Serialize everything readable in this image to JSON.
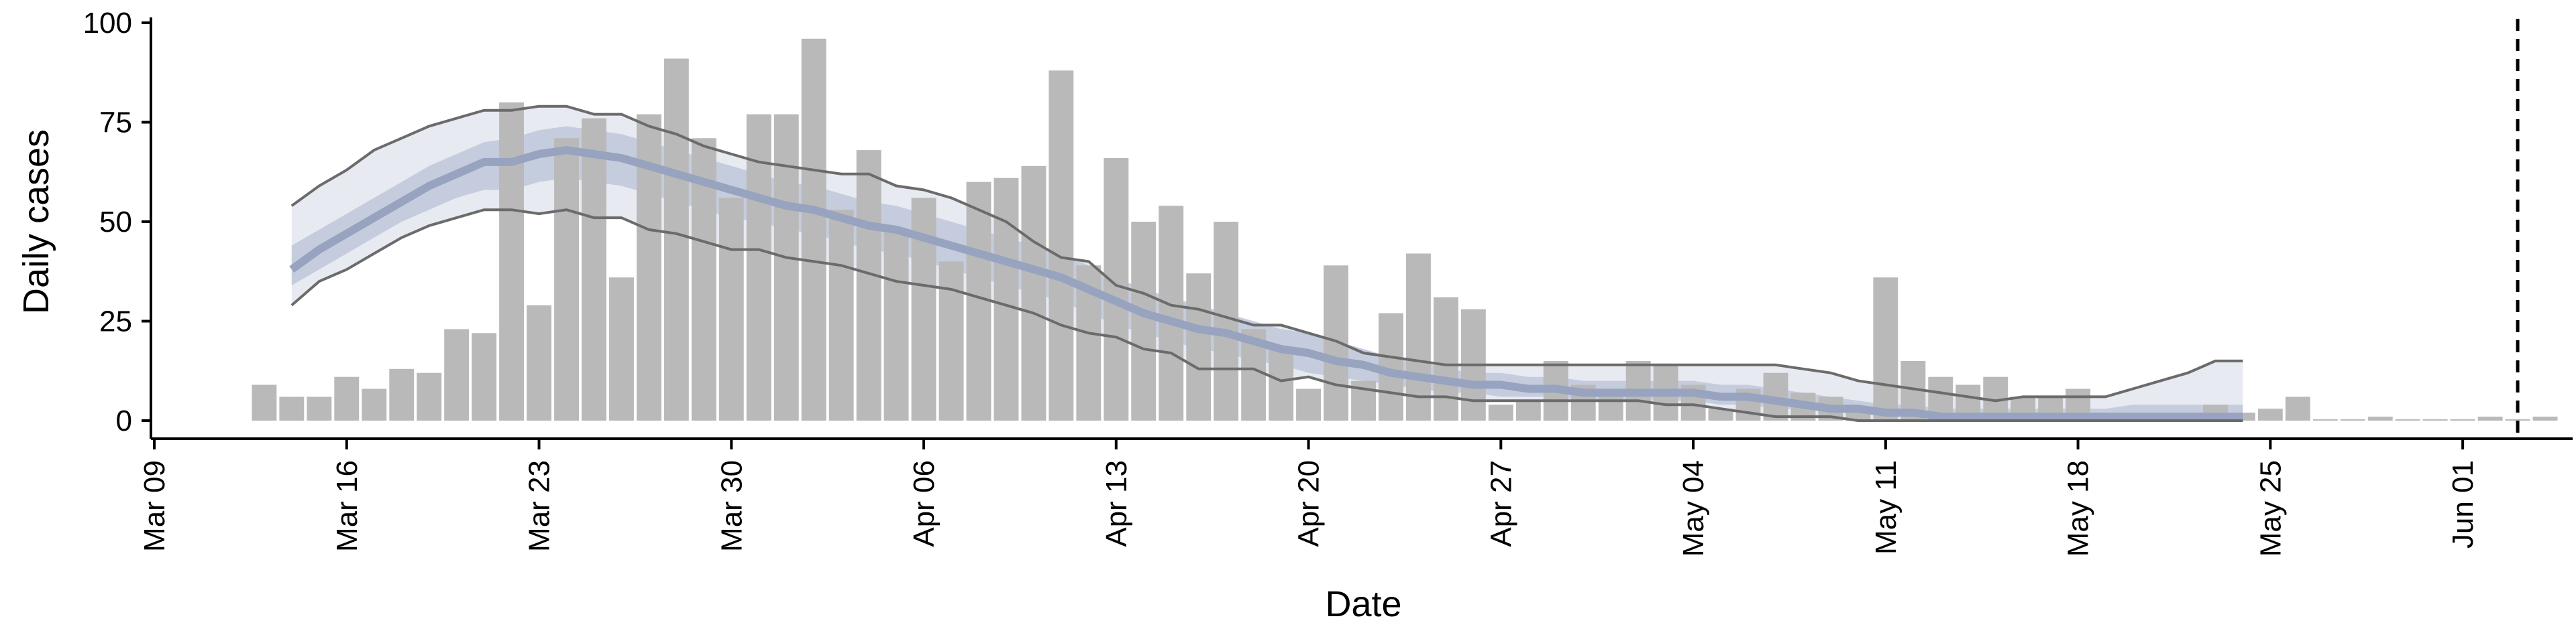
{
  "chart_data": {
    "type": "bar",
    "title": "",
    "xlabel": "Date",
    "ylabel": "Daily cases",
    "ylim": [
      0,
      100
    ],
    "yticks": [
      0,
      25,
      50,
      75,
      100
    ],
    "xlim": [
      "2020-03-09",
      "2020-06-05"
    ],
    "xticks": [
      {
        "date": "2020-03-09",
        "label": "Mar 09"
      },
      {
        "date": "2020-03-16",
        "label": "Mar 16"
      },
      {
        "date": "2020-03-23",
        "label": "Mar 23"
      },
      {
        "date": "2020-03-30",
        "label": "Mar 30"
      },
      {
        "date": "2020-04-06",
        "label": "Apr 06"
      },
      {
        "date": "2020-04-13",
        "label": "Apr 13"
      },
      {
        "date": "2020-04-20",
        "label": "Apr 20"
      },
      {
        "date": "2020-04-27",
        "label": "Apr 27"
      },
      {
        "date": "2020-05-04",
        "label": "May 04"
      },
      {
        "date": "2020-05-11",
        "label": "May 11"
      },
      {
        "date": "2020-05-18",
        "label": "May 18"
      },
      {
        "date": "2020-05-25",
        "label": "May 25"
      },
      {
        "date": "2020-06-01",
        "label": "Jun 01"
      }
    ],
    "grid": false,
    "legend": "none",
    "colors": {
      "bars": "#b9b9b9",
      "band_outer": "#e8eaf1",
      "band_inner": "#c5ccdd",
      "median": "#97a3bf",
      "ci_lines": "#6b6b6b",
      "vline": "#000000"
    },
    "vline_date": "2020-06-03",
    "observed": {
      "start": "2020-03-13",
      "values": [
        9,
        6,
        6,
        11,
        8,
        13,
        12,
        23,
        22,
        80,
        29,
        71,
        76,
        36,
        77,
        91,
        71,
        56,
        77,
        77,
        96,
        53,
        68,
        48,
        56,
        40,
        60,
        61,
        64,
        88,
        39,
        66,
        50,
        54,
        37,
        50,
        23,
        18,
        8,
        39,
        10,
        27,
        42,
        31,
        28,
        4,
        5,
        15,
        9,
        8,
        15,
        14,
        9,
        3,
        8,
        12,
        7,
        6,
        3,
        36,
        15,
        11,
        9,
        11,
        6,
        6,
        8,
        1,
        2,
        2,
        1,
        4,
        2,
        3,
        6,
        0,
        0,
        1,
        0,
        0,
        0,
        1,
        0,
        1
      ]
    },
    "model": {
      "start": "2020-03-14",
      "lower_ci": [
        29,
        35,
        38,
        42,
        46,
        49,
        51,
        53,
        53,
        52,
        53,
        51,
        51,
        48,
        47,
        45,
        43,
        43,
        41,
        40,
        39,
        37,
        35,
        34,
        33,
        31,
        29,
        27,
        24,
        22,
        21,
        18,
        17,
        13,
        13,
        13,
        10,
        11,
        9,
        8,
        7,
        6,
        6,
        5,
        5,
        5,
        5,
        5,
        5,
        5,
        4,
        4,
        3,
        2,
        1,
        1,
        1,
        0,
        0,
        0,
        0,
        0,
        0,
        0,
        0,
        0,
        0,
        0,
        0,
        0,
        0,
        0
      ],
      "median": [
        38,
        43,
        47,
        51,
        55,
        59,
        62,
        65,
        65,
        67,
        68,
        67,
        66,
        64,
        62,
        60,
        58,
        56,
        54,
        53,
        51,
        49,
        48,
        46,
        44,
        42,
        40,
        38,
        36,
        33,
        30,
        27,
        25,
        23,
        22,
        20,
        18,
        17,
        15,
        14,
        12,
        11,
        10,
        9,
        9,
        8,
        8,
        7,
        7,
        7,
        7,
        7,
        6,
        6,
        5,
        4,
        3,
        3,
        2,
        2,
        1,
        1,
        1,
        1,
        1,
        1,
        1,
        1,
        1,
        1,
        1,
        1
      ],
      "inner_lower": [
        34,
        38,
        42,
        46,
        50,
        53,
        56,
        58,
        58,
        60,
        61,
        60,
        59,
        57,
        55,
        53,
        51,
        50,
        48,
        47,
        45,
        43,
        42,
        40,
        38,
        36,
        34,
        32,
        30,
        27,
        24,
        22,
        20,
        18,
        17,
        15,
        14,
        12,
        11,
        10,
        9,
        8,
        7,
        7,
        6,
        6,
        6,
        5,
        5,
        5,
        5,
        5,
        4,
        4,
        3,
        3,
        2,
        2,
        1,
        1,
        1,
        0,
        0,
        0,
        0,
        0,
        0,
        0,
        0,
        0,
        0,
        0
      ],
      "inner_upper": [
        44,
        48,
        52,
        56,
        60,
        64,
        67,
        70,
        71,
        73,
        74,
        73,
        72,
        70,
        68,
        66,
        64,
        62,
        60,
        59,
        57,
        55,
        54,
        52,
        50,
        48,
        46,
        44,
        42,
        39,
        36,
        33,
        31,
        29,
        27,
        25,
        23,
        22,
        20,
        18,
        16,
        15,
        13,
        12,
        12,
        11,
        11,
        10,
        10,
        10,
        10,
        10,
        9,
        9,
        8,
        7,
        6,
        5,
        4,
        4,
        3,
        3,
        3,
        3,
        3,
        3,
        3,
        4,
        4,
        4,
        4,
        4
      ],
      "upper_ci": [
        54,
        59,
        63,
        68,
        71,
        74,
        76,
        78,
        78,
        79,
        79,
        77,
        77,
        74,
        72,
        69,
        67,
        65,
        64,
        63,
        62,
        62,
        59,
        58,
        56,
        53,
        50,
        45,
        41,
        40,
        34,
        32,
        29,
        28,
        26,
        24,
        24,
        22,
        20,
        17,
        16,
        15,
        14,
        14,
        14,
        14,
        14,
        14,
        14,
        14,
        14,
        14,
        14,
        14,
        14,
        13,
        12,
        10,
        9,
        8,
        7,
        6,
        5,
        6,
        6,
        6,
        6,
        8,
        10,
        12,
        15,
        15
      ]
    }
  }
}
